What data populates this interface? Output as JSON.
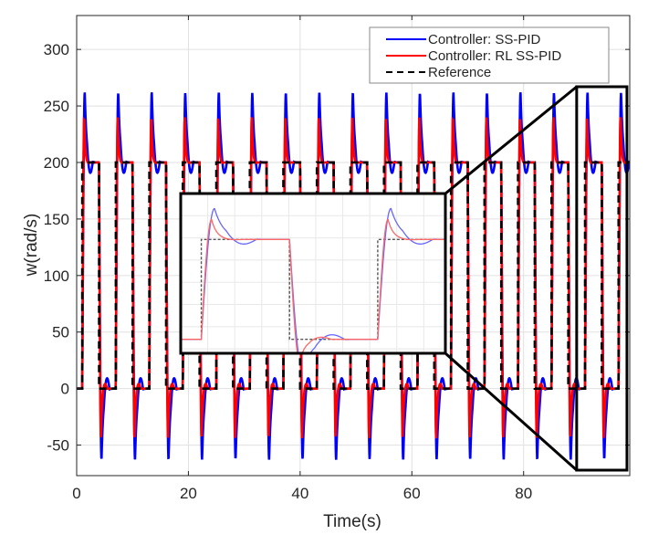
{
  "chart_data": {
    "type": "line",
    "title": "",
    "xlabel": "Time(s)",
    "ylabel": "w(rad/s)",
    "xlim": [
      0,
      99
    ],
    "ylim": [
      -77,
      330
    ],
    "grid": true,
    "xticks": [
      0,
      20,
      40,
      60,
      80
    ],
    "xtick_labels": [
      "0",
      "20",
      "40",
      "60",
      "80"
    ],
    "yticks": [
      -50,
      0,
      50,
      100,
      150,
      200,
      250,
      300
    ],
    "ytick_labels": [
      "-50",
      "0",
      "50",
      "100",
      "150",
      "200",
      "250",
      "300"
    ],
    "legend_position": "top-right",
    "reference": {
      "period_s": 6,
      "start_s": 1,
      "high": 200,
      "low": 0,
      "high_duration_s": 3
    },
    "series": [
      {
        "name": "Controller: SS-PID",
        "color": "#0000ff",
        "style": "solid",
        "overshoot_peak": 262,
        "undershoot_peak": -63,
        "high_ripple_min": 188,
        "low_ripple_max": 12
      },
      {
        "name": "Controller: RL SS-PID",
        "color": "#ff0000",
        "style": "solid",
        "overshoot_peak": 240,
        "undershoot_peak": -44,
        "high_ripple_min": 199,
        "low_ripple_max": 5
      },
      {
        "name": "Reference",
        "color": "#000000",
        "style": "dashed"
      }
    ],
    "annotations": [
      {
        "type": "zoom-inset",
        "source_x_range": [
          89.5,
          98.5
        ],
        "description": "magnified view of last cycle"
      }
    ]
  }
}
